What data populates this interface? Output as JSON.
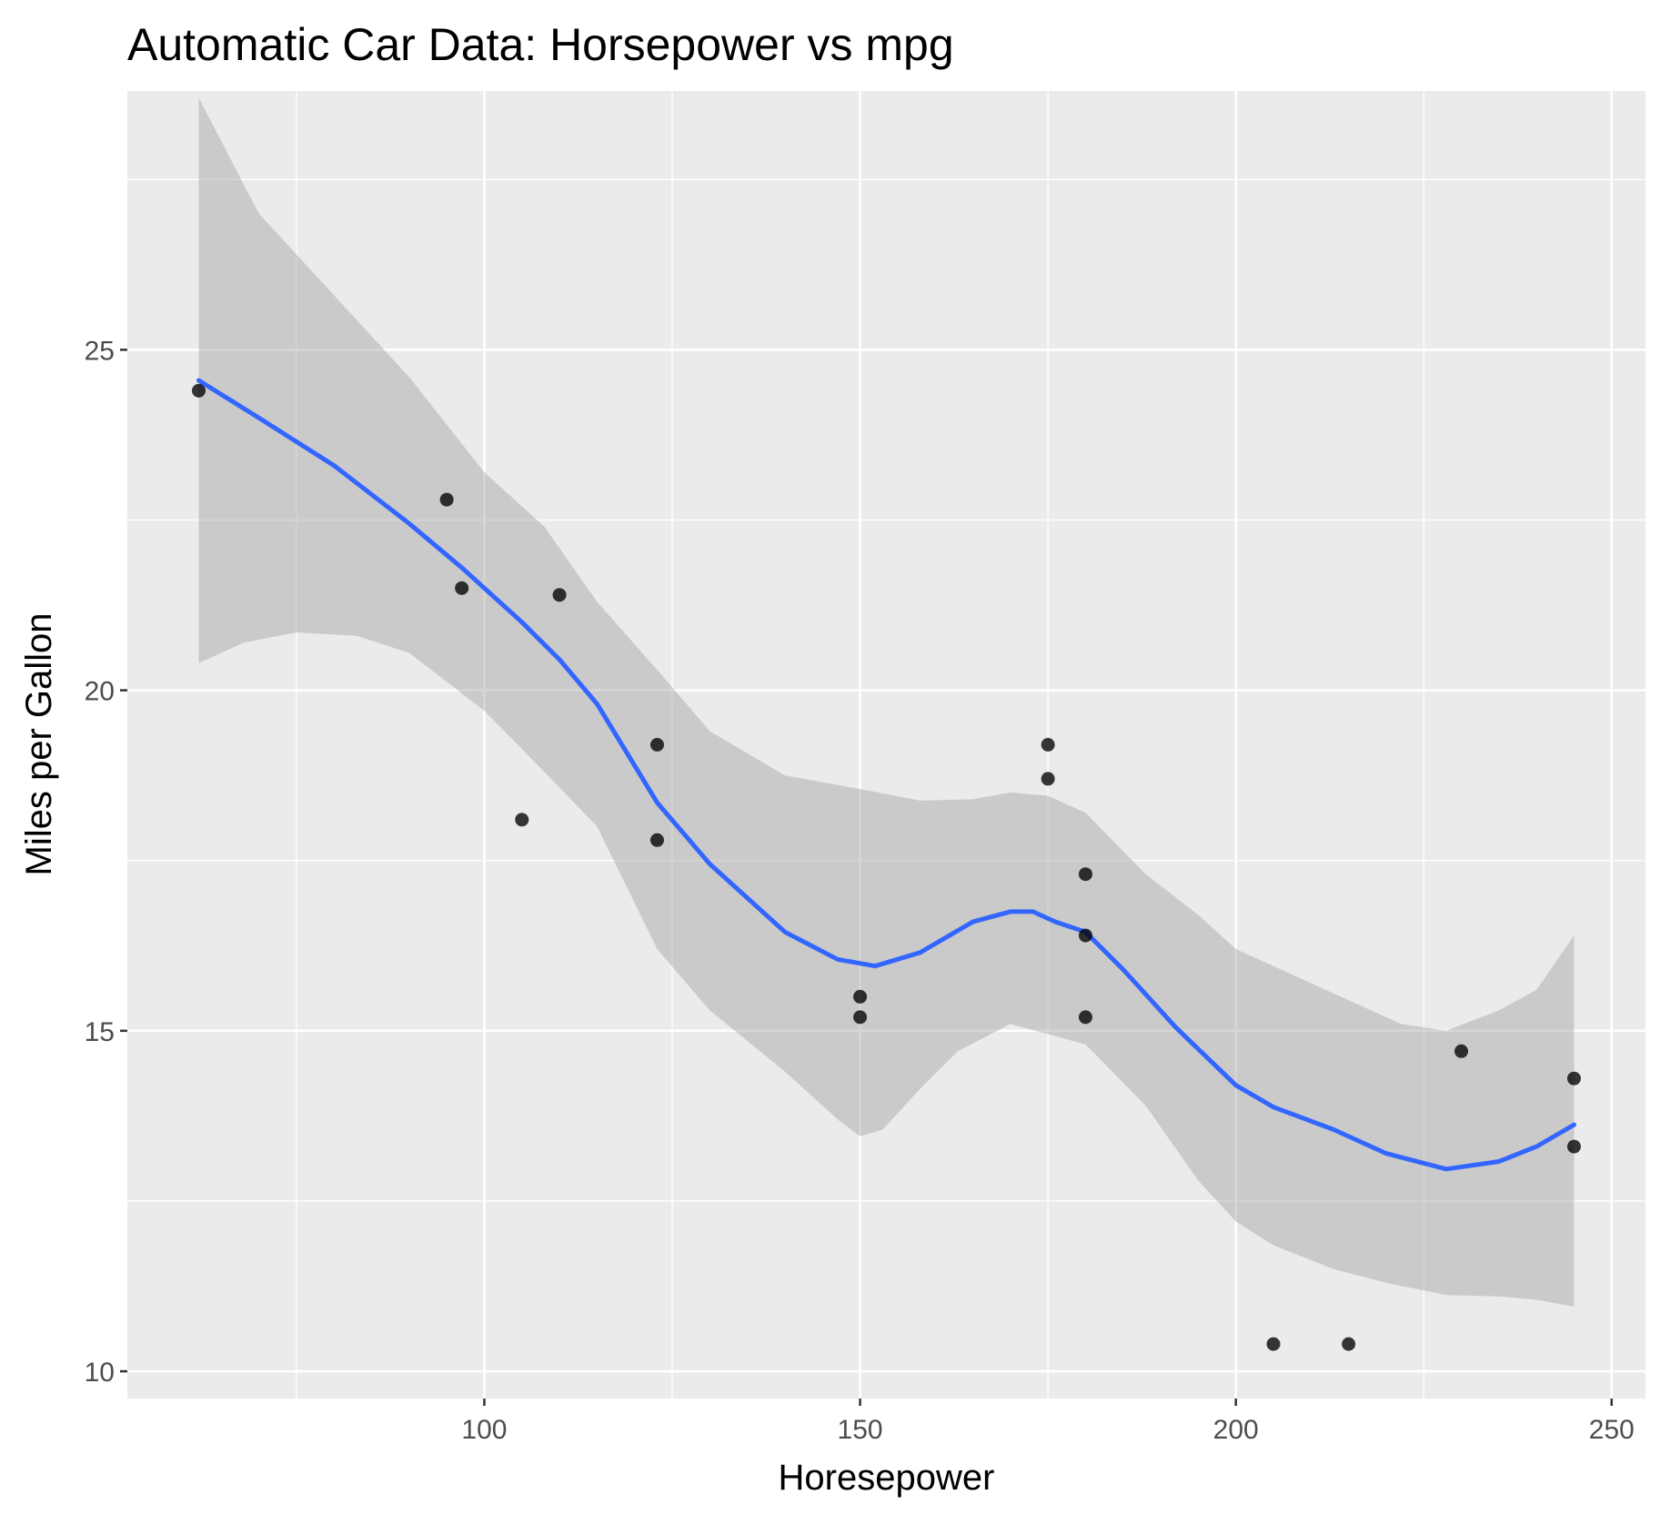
{
  "chart_data": {
    "type": "scatter",
    "title": "Automatic Car Data: Horsepower vs mpg",
    "xlabel": "Horesepower",
    "ylabel": "Miles per Gallon",
    "xlim": [
      52.5,
      254.5
    ],
    "ylim": [
      9.6,
      28.8
    ],
    "x_ticks": [
      100,
      150,
      200,
      250
    ],
    "x_tick_labels": [
      "100",
      "150",
      "200",
      "250"
    ],
    "x_minor_ticks": [
      75,
      125,
      175,
      225
    ],
    "y_ticks": [
      10,
      15,
      20,
      25
    ],
    "y_tick_labels": [
      "10",
      "15",
      "20",
      "25"
    ],
    "y_minor_ticks": [
      12.5,
      17.5,
      22.5,
      27.5
    ],
    "grid": true,
    "legend": "none",
    "colors": {
      "panel": "#ebebeb",
      "grid": "#ffffff",
      "points": "#000000",
      "smooth_line": "#3366ff",
      "ribbon": "#999999"
    },
    "points": [
      {
        "x": 62,
        "y": 24.4
      },
      {
        "x": 95,
        "y": 22.8
      },
      {
        "x": 97,
        "y": 21.5
      },
      {
        "x": 105,
        "y": 18.1
      },
      {
        "x": 110,
        "y": 21.4
      },
      {
        "x": 123,
        "y": 19.2
      },
      {
        "x": 123,
        "y": 17.8
      },
      {
        "x": 150,
        "y": 15.5
      },
      {
        "x": 150,
        "y": 15.2
      },
      {
        "x": 175,
        "y": 19.2
      },
      {
        "x": 175,
        "y": 18.7
      },
      {
        "x": 180,
        "y": 16.4
      },
      {
        "x": 180,
        "y": 17.3
      },
      {
        "x": 180,
        "y": 15.2
      },
      {
        "x": 205,
        "y": 10.4
      },
      {
        "x": 215,
        "y": 10.4
      },
      {
        "x": 230,
        "y": 14.7
      },
      {
        "x": 245,
        "y": 14.3
      },
      {
        "x": 245,
        "y": 13.3
      }
    ],
    "smooth": {
      "method": "loess",
      "line": [
        [
          62,
          24.55
        ],
        [
          70,
          24.0
        ],
        [
          80,
          23.3
        ],
        [
          90,
          22.45
        ],
        [
          97,
          21.8
        ],
        [
          105,
          21.0
        ],
        [
          110,
          20.45
        ],
        [
          115,
          19.8
        ],
        [
          123,
          18.35
        ],
        [
          130,
          17.45
        ],
        [
          140,
          16.45
        ],
        [
          147,
          16.05
        ],
        [
          152,
          15.95
        ],
        [
          158,
          16.15
        ],
        [
          165,
          16.6
        ],
        [
          170,
          16.75
        ],
        [
          173,
          16.75
        ],
        [
          176,
          16.6
        ],
        [
          180,
          16.45
        ],
        [
          185,
          15.9
        ],
        [
          192,
          15.05
        ],
        [
          200,
          14.2
        ],
        [
          205,
          13.88
        ],
        [
          213,
          13.55
        ],
        [
          220,
          13.2
        ],
        [
          228,
          12.97
        ],
        [
          235,
          13.08
        ],
        [
          240,
          13.3
        ],
        [
          245,
          13.62
        ]
      ],
      "ribbon_upper": [
        [
          62,
          28.7
        ],
        [
          70,
          27.0
        ],
        [
          80,
          25.8
        ],
        [
          90,
          24.6
        ],
        [
          100,
          23.2
        ],
        [
          108,
          22.4
        ],
        [
          115,
          21.3
        ],
        [
          123,
          20.3
        ],
        [
          130,
          19.4
        ],
        [
          140,
          18.75
        ],
        [
          150,
          18.55
        ],
        [
          158,
          18.38
        ],
        [
          165,
          18.4
        ],
        [
          170,
          18.5
        ],
        [
          175,
          18.45
        ],
        [
          180,
          18.2
        ],
        [
          188,
          17.3
        ],
        [
          195,
          16.7
        ],
        [
          200,
          16.2
        ],
        [
          208,
          15.8
        ],
        [
          215,
          15.45
        ],
        [
          222,
          15.1
        ],
        [
          228,
          15.0
        ],
        [
          235,
          15.3
        ],
        [
          240,
          15.6
        ],
        [
          245,
          16.4
        ]
      ],
      "ribbon_lower": [
        [
          62,
          20.4
        ],
        [
          68,
          20.7
        ],
        [
          75,
          20.85
        ],
        [
          83,
          20.8
        ],
        [
          90,
          20.55
        ],
        [
          100,
          19.7
        ],
        [
          108,
          18.8
        ],
        [
          115,
          18.0
        ],
        [
          123,
          16.2
        ],
        [
          130,
          15.3
        ],
        [
          140,
          14.4
        ],
        [
          147,
          13.7
        ],
        [
          150,
          13.45
        ],
        [
          153,
          13.55
        ],
        [
          158,
          14.15
        ],
        [
          163,
          14.7
        ],
        [
          170,
          15.1
        ],
        [
          175,
          14.95
        ],
        [
          180,
          14.8
        ],
        [
          188,
          13.9
        ],
        [
          195,
          12.8
        ],
        [
          200,
          12.2
        ],
        [
          205,
          11.85
        ],
        [
          213,
          11.5
        ],
        [
          220,
          11.3
        ],
        [
          228,
          11.12
        ],
        [
          235,
          11.1
        ],
        [
          240,
          11.05
        ],
        [
          245,
          10.95
        ]
      ]
    }
  }
}
